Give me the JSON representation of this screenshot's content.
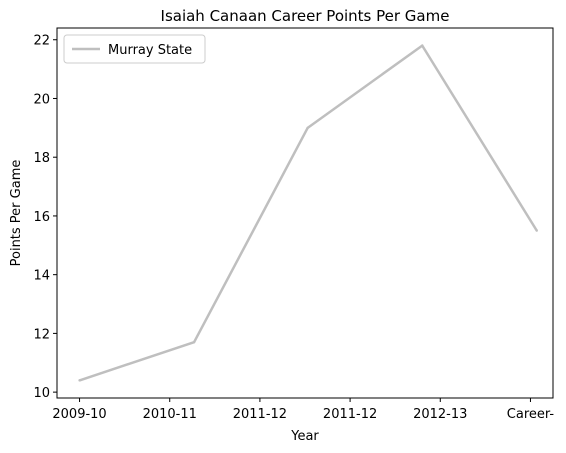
{
  "chart_data": {
    "type": "line",
    "title": "Isaiah Canaan Career Points Per Game",
    "xlabel": "Year",
    "ylabel": "Points Per Game",
    "x_tick_labels": [
      "2009-10",
      "2010-11",
      "2011-12",
      "2011-12",
      "2012-13",
      "Career-"
    ],
    "y_ticks": [
      10,
      12,
      14,
      16,
      18,
      20,
      22
    ],
    "ylim": [
      9.8,
      22.4
    ],
    "grid": false,
    "legend_position": "upper-left",
    "series": [
      {
        "name": "Murray State",
        "color": "#bfbfbf",
        "points": [
          {
            "x": 0,
            "y": 10.4
          },
          {
            "x": 1.27,
            "y": 11.7
          },
          {
            "x": 2.53,
            "y": 19.0
          },
          {
            "x": 3.8,
            "y": 21.8
          },
          {
            "x": 5.07,
            "y": 15.5
          }
        ]
      }
    ]
  }
}
